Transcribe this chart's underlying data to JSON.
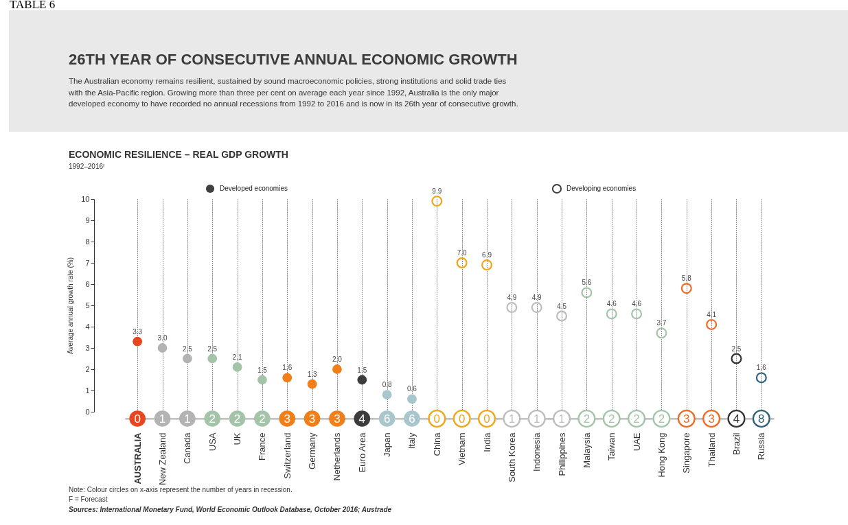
{
  "chart_data": {
    "type": "scatter",
    "title": "26TH YEAR OF CONSECUTIVE ANNUAL ECONOMIC GROWTH",
    "subtitle": "The Australian economy remains resilient, sustained by sound macroeconomic policies, strong institutions and solid trade ties with the Asia-Pacific region. Growing more than three per cent on average each year since 1992, Australia is the only major developed economy to have recorded no annual recessions from 1992 to 2016 and is now in its 26th year of consecutive growth.",
    "ylabel": "Average annual growth rate (%)",
    "categories": [
      "AUSTRALIA",
      "New Zealand",
      "Canada",
      "USA",
      "UK",
      "France",
      "Switzerland",
      "Germany",
      "Netherlands",
      "Euro Area",
      "Japan",
      "Italy",
      "China",
      "Vietnam",
      "India",
      "South Korea",
      "Indonesia",
      "Philippines",
      "Malaysia",
      "Taiwan",
      "UAE",
      "Hong Kong",
      "Singapore",
      "Thailand",
      "Brazil",
      "Russia"
    ],
    "series": [
      {
        "name": "Developed economies",
        "color": "#404040",
        "values": [
          3.3,
          3.0,
          2.5,
          2.5,
          2.1,
          1.5,
          1.6,
          1.3,
          2.0,
          1.5,
          0.8,
          0.6,
          null,
          null,
          null,
          null,
          null,
          null,
          null,
          null,
          null,
          null,
          null,
          null,
          null,
          null
        ],
        "value_labels": [
          "3.3",
          "3.0",
          "2.5",
          "2.5",
          "2.1",
          "1.5",
          "1.6",
          "1.3",
          "2.0",
          "1.5",
          "0.8",
          "0.6",
          null,
          null,
          null,
          null,
          null,
          null,
          null,
          null,
          null,
          null,
          null,
          null,
          null,
          null
        ],
        "colors": [
          "#e8461e",
          "#b3b3b3",
          "#b3b3b3",
          "#a3c4a8",
          "#a3c4a8",
          "#a3c4a8",
          "#f07f1a",
          "#f07f1a",
          "#f07f1a",
          "#3c3c3c",
          "#a9c6cc",
          "#a9c6cc",
          null,
          null,
          null,
          null,
          null,
          null,
          null,
          null,
          null,
          null,
          null,
          null,
          null,
          null
        ]
      },
      {
        "name": "Developing economies",
        "color": "#404040",
        "values": [
          null,
          null,
          null,
          null,
          null,
          null,
          null,
          null,
          null,
          null,
          null,
          null,
          9.9,
          7.0,
          6.9,
          4.9,
          4.9,
          4.5,
          5.6,
          4.6,
          4.6,
          3.7,
          5.8,
          4.1,
          2.5,
          1.6
        ],
        "value_labels": [
          null,
          null,
          null,
          null,
          null,
          null,
          null,
          null,
          null,
          null,
          null,
          null,
          "9.9",
          "7.0",
          "6.9",
          "4.9",
          "4.9",
          "4.5",
          "5.6",
          "4.6",
          "4.6",
          "3.7",
          "5.8",
          "4.1",
          "2.5",
          "1.6"
        ],
        "colors": [
          null,
          null,
          null,
          null,
          null,
          null,
          null,
          null,
          null,
          null,
          null,
          null,
          "#f2a516",
          "#f2a516",
          "#f2a516",
          "#bdbdbd",
          "#bdbdbd",
          "#bdbdbd",
          "#a3c4a8",
          "#a3c4a8",
          "#a3c4a8",
          "#a3c4a8",
          "#f06a22",
          "#f06a22",
          "#333333",
          "#2f5f7a"
        ]
      }
    ],
    "ylim": [
      0,
      10
    ],
    "yticks": [
      0,
      1,
      2,
      3,
      4,
      5,
      6,
      7,
      8,
      9,
      10
    ],
    "grid": "x",
    "legend": "top",
    "marker": "circle",
    "annotations": [
      "TABLE 6",
      "ECONOMIC RESILIENCE – REAL GDP GROWTH",
      "1992–2016ᶠ",
      "Note: Colour circles on x-axis represent the number of years in recession.",
      "F = Forecast",
      "Sources: International Monetary Fund, World Economic Outlook Database, October 2016; Austrade",
      {
        "text": "0",
        "x": "AUSTRALIA"
      },
      {
        "text": "1",
        "x": "New Zealand"
      },
      {
        "text": "1",
        "x": "Canada"
      },
      {
        "text": "2",
        "x": "USA"
      },
      {
        "text": "2",
        "x": "UK"
      },
      {
        "text": "2",
        "x": "France"
      },
      {
        "text": "3",
        "x": "Switzerland"
      },
      {
        "text": "3",
        "x": "Germany"
      },
      {
        "text": "3",
        "x": "Netherlands"
      },
      {
        "text": "4",
        "x": "Euro Area"
      },
      {
        "text": "6",
        "x": "Japan"
      },
      {
        "text": "6",
        "x": "Italy"
      },
      {
        "text": "0",
        "x": "China"
      },
      {
        "text": "0",
        "x": "Vietnam"
      },
      {
        "text": "0",
        "x": "India"
      },
      {
        "text": "1",
        "x": "South Korea"
      },
      {
        "text": "1",
        "x": "Indonesia"
      },
      {
        "text": "1",
        "x": "Philippines"
      },
      {
        "text": "2",
        "x": "Malaysia"
      },
      {
        "text": "2",
        "x": "Taiwan"
      },
      {
        "text": "2",
        "x": "UAE"
      },
      {
        "text": "2",
        "x": "Hong Kong"
      },
      {
        "text": "3",
        "x": "Singapore"
      },
      {
        "text": "3",
        "x": "Thailand"
      },
      {
        "text": "4",
        "x": "Brazil"
      },
      {
        "text": "8",
        "x": "Russia"
      }
    ]
  }
}
